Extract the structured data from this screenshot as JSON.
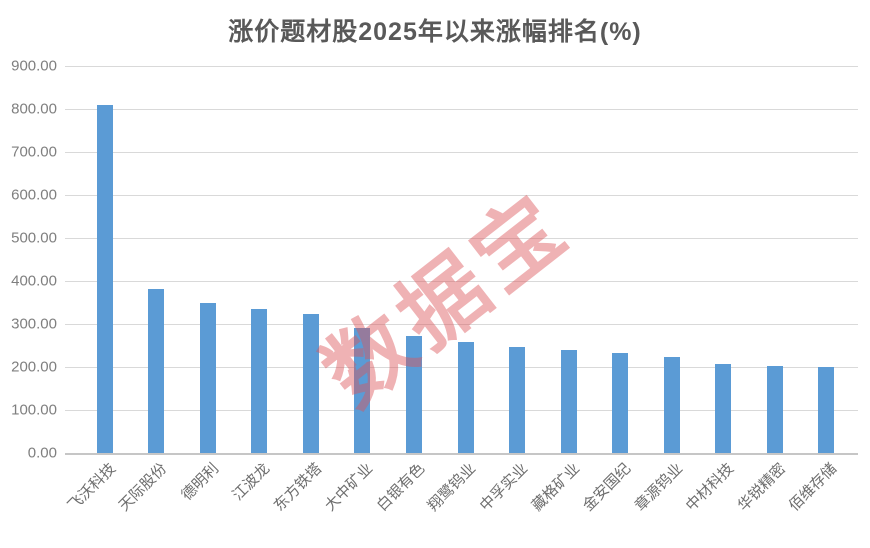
{
  "title": "涨价题材股2025年以来涨幅排名(%)",
  "watermark": "数据宝",
  "colors": {
    "bar": "#5B9BD5",
    "title_text": "#595959",
    "axis_text": "#7f7f7f",
    "category_text": "#6e6e6e",
    "gridline": "#d9d9d9",
    "baseline": "#c6c6c6",
    "watermark": "rgba(219,84,89,0.45)"
  },
  "chart_data": {
    "type": "bar",
    "title": "涨价题材股2025年以来涨幅排名(%)",
    "categories": [
      "飞沃科技",
      "天际股份",
      "德明利",
      "江波龙",
      "东方铁塔",
      "大中矿业",
      "白银有色",
      "翔鹭钨业",
      "中孚实业",
      "藏格矿业",
      "金安国纪",
      "章源钨业",
      "中材科技",
      "华锐精密",
      "佰维存储"
    ],
    "values": [
      810,
      382,
      350,
      334,
      323,
      290,
      272,
      258,
      246,
      240,
      232,
      224,
      207,
      203,
      199
    ],
    "ylim": [
      0,
      900
    ],
    "ytick_step": 100,
    "ytick_labels_top_to_bottom": [
      "900.00",
      "800.00",
      "700.00",
      "600.00",
      "500.00",
      "400.00",
      "300.00",
      "200.00",
      "100.00",
      "0.00"
    ],
    "grid": true,
    "legend": false,
    "bar_color": "#5B9BD5",
    "watermark": "数据宝"
  }
}
